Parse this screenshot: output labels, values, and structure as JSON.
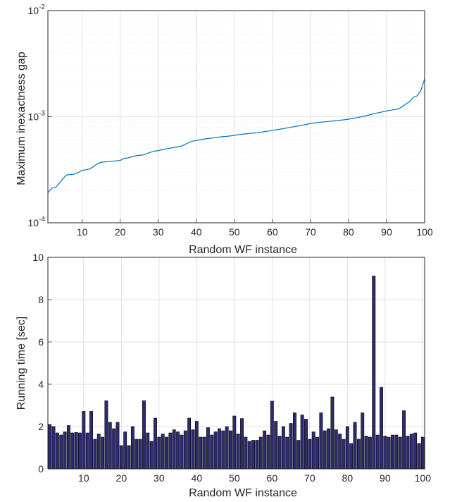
{
  "colors": {
    "line": "#0072bd",
    "bar_fill": "#2e2c70",
    "bar_edge": "#000000",
    "grid": "#d9d9d9",
    "axis": "#262626"
  },
  "chart_data": [
    {
      "type": "line",
      "xlabel": "Random WF instance",
      "ylabel": "Maximum inexactness gap",
      "xlim": [
        1,
        100
      ],
      "ylim": [
        0.0001,
        0.01
      ],
      "yscale": "log",
      "grid": true,
      "minor_grid": true,
      "xticks": [
        10,
        20,
        30,
        40,
        50,
        60,
        70,
        80,
        90,
        100
      ],
      "xtick_labels": [
        "10",
        "20",
        "30",
        "40",
        "50",
        "60",
        "70",
        "80",
        "90",
        "100"
      ],
      "yticks": [
        0.0001,
        0.001,
        0.01
      ],
      "ytick_labels": [
        {
          "base": "10",
          "exp": "-4"
        },
        {
          "base": "10",
          "exp": "-3"
        },
        {
          "base": "10",
          "exp": "-2"
        }
      ],
      "series": [
        {
          "x": [
            1,
            2,
            3,
            4,
            5,
            6,
            7,
            8,
            9,
            10,
            11,
            12,
            13,
            14,
            15,
            16,
            17,
            18,
            19,
            20,
            21,
            22,
            23,
            24,
            25,
            26,
            27,
            28,
            29,
            30,
            31,
            32,
            33,
            34,
            35,
            36,
            37,
            38,
            39,
            40,
            41,
            42,
            43,
            44,
            45,
            46,
            47,
            48,
            49,
            50,
            51,
            52,
            53,
            54,
            55,
            56,
            57,
            58,
            59,
            60,
            61,
            62,
            63,
            64,
            65,
            66,
            67,
            68,
            69,
            70,
            71,
            72,
            73,
            74,
            75,
            76,
            77,
            78,
            79,
            80,
            81,
            82,
            83,
            84,
            85,
            86,
            87,
            88,
            89,
            90,
            91,
            92,
            93,
            94,
            95,
            96,
            97,
            98,
            99,
            100
          ],
          "y": [
            0.000192,
            0.000212,
            0.000215,
            0.000235,
            0.000262,
            0.000283,
            0.000285,
            0.000288,
            0.000298,
            0.000312,
            0.000316,
            0.000322,
            0.000339,
            0.00036,
            0.000372,
            0.000375,
            0.000378,
            0.000381,
            0.000384,
            0.000387,
            0.000404,
            0.000409,
            0.000418,
            0.000428,
            0.000432,
            0.000436,
            0.000448,
            0.000462,
            0.000474,
            0.000478,
            0.000489,
            0.000497,
            0.000504,
            0.000511,
            0.000519,
            0.000527,
            0.000547,
            0.000571,
            0.000587,
            0.000596,
            0.000605,
            0.000615,
            0.000622,
            0.000628,
            0.000635,
            0.000642,
            0.000649,
            0.000653,
            0.000659,
            0.000667,
            0.000676,
            0.000683,
            0.000689,
            0.000695,
            0.000701,
            0.000707,
            0.000715,
            0.000724,
            0.000733,
            0.000744,
            0.000752,
            0.000762,
            0.000773,
            0.000785,
            0.000797,
            0.000808,
            0.000821,
            0.000833,
            0.000847,
            0.000861,
            0.000873,
            0.000882,
            0.000889,
            0.000896,
            0.000903,
            0.000912,
            0.00092,
            0.000928,
            0.000936,
            0.000948,
            0.000961,
            0.000976,
            0.000992,
            0.001011,
            0.001029,
            0.001051,
            0.001072,
            0.001093,
            0.001112,
            0.001132,
            0.001149,
            0.001166,
            0.001181,
            0.001232,
            0.001315,
            0.001382,
            0.001521,
            0.001571,
            0.001761,
            0.002272
          ]
        }
      ]
    },
    {
      "type": "bar",
      "xlabel": "Random WF instance",
      "ylabel": "Running time [sec]",
      "xlim": [
        0.5,
        100.5
      ],
      "ylim": [
        0,
        10
      ],
      "grid": true,
      "xticks": [
        10,
        20,
        30,
        40,
        50,
        60,
        70,
        80,
        90,
        100
      ],
      "xtick_labels": [
        "10",
        "20",
        "30",
        "40",
        "50",
        "60",
        "70",
        "80",
        "90",
        "100"
      ],
      "yticks": [
        0,
        2,
        4,
        6,
        8,
        10
      ],
      "ytick_labels": [
        "0",
        "2",
        "4",
        "6",
        "8",
        "10"
      ],
      "categories": [
        1,
        2,
        3,
        4,
        5,
        6,
        7,
        8,
        9,
        10,
        11,
        12,
        13,
        14,
        15,
        16,
        17,
        18,
        19,
        20,
        21,
        22,
        23,
        24,
        25,
        26,
        27,
        28,
        29,
        30,
        31,
        32,
        33,
        34,
        35,
        36,
        37,
        38,
        39,
        40,
        41,
        42,
        43,
        44,
        45,
        46,
        47,
        48,
        49,
        50,
        51,
        52,
        53,
        54,
        55,
        56,
        57,
        58,
        59,
        60,
        61,
        62,
        63,
        64,
        65,
        66,
        67,
        68,
        69,
        70,
        71,
        72,
        73,
        74,
        75,
        76,
        77,
        78,
        79,
        80,
        81,
        82,
        83,
        84,
        85,
        86,
        87,
        88,
        89,
        90,
        91,
        92,
        93,
        94,
        95,
        96,
        97,
        98,
        99,
        100
      ],
      "values": [
        2.1,
        2.0,
        1.7,
        1.6,
        1.75,
        2.05,
        1.7,
        1.72,
        1.7,
        2.72,
        1.7,
        2.72,
        1.4,
        1.65,
        1.5,
        3.22,
        2.2,
        1.9,
        2.2,
        1.1,
        1.75,
        1.1,
        2.0,
        1.4,
        1.4,
        3.22,
        1.7,
        1.3,
        2.4,
        1.5,
        1.65,
        1.5,
        1.7,
        1.85,
        1.75,
        1.6,
        1.8,
        2.4,
        1.85,
        2.25,
        1.5,
        1.5,
        1.95,
        1.6,
        1.75,
        1.9,
        1.8,
        2.0,
        1.8,
        2.5,
        1.65,
        2.38,
        1.5,
        1.3,
        1.35,
        1.35,
        1.5,
        1.8,
        1.6,
        3.2,
        2.25,
        1.55,
        2.0,
        1.5,
        2.15,
        2.65,
        1.35,
        2.55,
        2.35,
        1.4,
        1.75,
        1.5,
        2.65,
        1.8,
        1.9,
        3.4,
        1.85,
        1.65,
        1.4,
        2.0,
        1.2,
        2.2,
        1.4,
        2.65,
        1.55,
        1.5,
        9.12,
        1.6,
        3.85,
        1.55,
        1.5,
        1.6,
        1.6,
        1.5,
        2.75,
        1.55,
        1.65,
        1.7,
        1.2,
        1.5
      ]
    }
  ]
}
